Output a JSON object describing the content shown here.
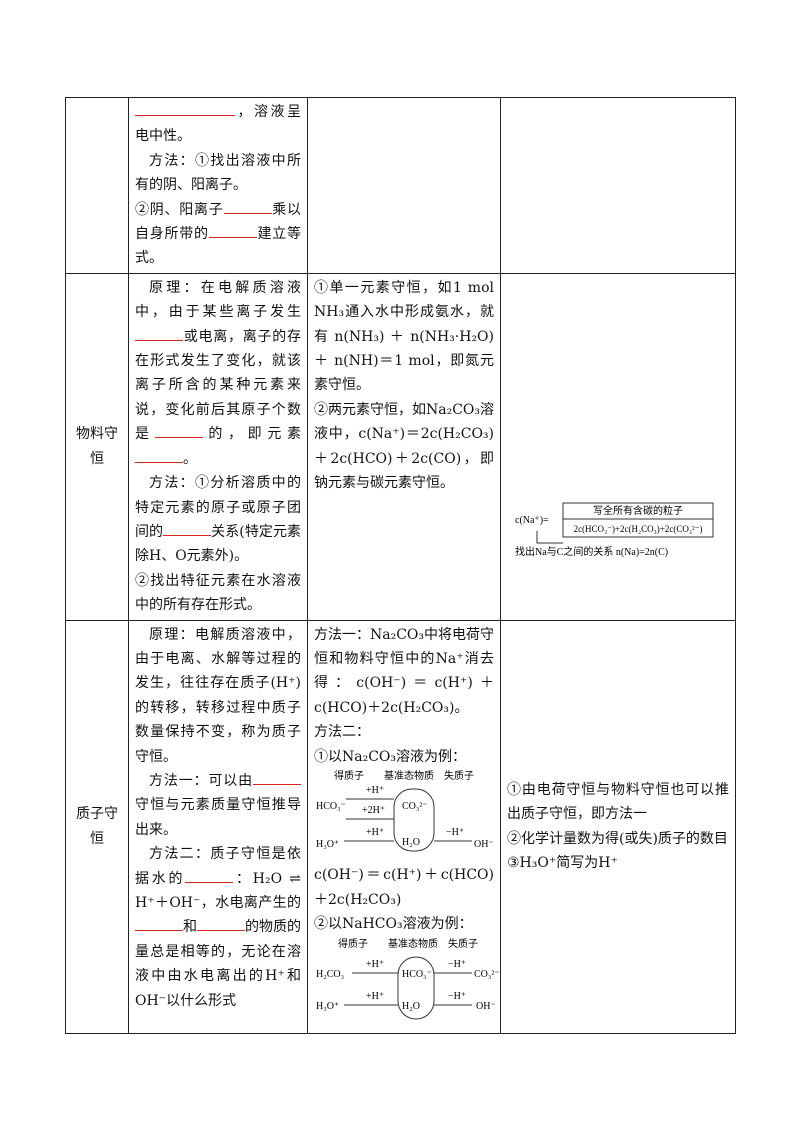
{
  "rows": [
    {
      "col2": [
        [
          "，溶液呈电中性。"
        ],
        [
          "方法：①找出溶液中所有的阴、阳离子。"
        ],
        [
          "②阴、阳离子",
          "乘以自身所带的",
          "建立等式。"
        ]
      ]
    },
    {
      "label": "物料守恒",
      "col2": [
        [
          "原理：在电解质溶液中，由于某些离子发生",
          "或电离，离子的存在形式发生了变化，就该离子所含的某种元素来说，变化前后其原子个数是",
          "的，即元素",
          "。"
        ],
        [
          "方法：①分析溶质中的特定元素的原子或原子团间的",
          "关系(特定元素除H、O元素外)。"
        ],
        [
          "②找出特征元素在水溶液中的所有存在形式。"
        ]
      ],
      "col3": [
        "①单一元素守恒，如1 mol NH₃通入水中形成氨水，就有 n(NH₃) ＋ n(NH₃·H₂O) ＋ n(NH)＝1 mol，即氮元素守恒。",
        "②两元素守恒，如Na₂CO₃溶液中，c(Na⁺)＝2c(H₂CO₃)＋2c(HCO)＋2c(CO)，即钠元素与碳元素守恒。"
      ],
      "diagram": {
        "left": "c(Na⁺)=",
        "top": "写全所有含碳的粒子",
        "formula": "2c(HCO₃⁻)+2c(H₂CO₃)+2c(CO₃²⁻)",
        "bottom": "找出Na与C之间的关系 n(Na)=2n(C)"
      }
    },
    {
      "label": "质子守恒",
      "col2": [
        [
          "原理：电解质溶液中，由于电离、水解等过程的发生，往往存在质子(H⁺)的转移，转移过程中质子数量保持不变，称为质子守恒。"
        ],
        [
          "方法一：可以由",
          "守恒与元素质量守恒推导出来。"
        ],
        [
          "方法二：质子守恒是依据水的",
          "：H₂O ⇌ H⁺＋OH⁻，水电离产生的",
          "和",
          "的物质的量总是相等的，无论在溶液中由水电离出的H⁺和OH⁻以什么形式"
        ]
      ],
      "col3": [
        "方法一：Na₂CO₃中将电荷守恒和物料守恒中的Na⁺消去得：c(OH⁻)＝c(H⁺)＋c(HCO)＋2c(H₂CO₃)。",
        "方法二：",
        "①以Na₂CO₃溶液为例：",
        "c(OH⁻)＝c(H⁺)＋c(HCO)＋2c(H₂CO₃)",
        "②以NaHCO₃溶液为例："
      ],
      "d1": {
        "gain": "得质子",
        "base": "基准态物质",
        "lose": "失质子",
        "a": "HCO₃⁻",
        "h1": "+H⁺",
        "h2": "+2H⁺",
        "c": "CO₃²⁻",
        "h3": "+H⁺",
        "b": "H₃O⁺",
        "w": "H₂O",
        "h4": "−H⁺",
        "o": "OH⁻"
      },
      "d2": {
        "gain": "得质子",
        "base": "基准态物质",
        "lose": "失质子",
        "a": "H₂CO₃",
        "h1": "+H⁺",
        "c": "HCO₃⁻",
        "h2": "−H⁺",
        "e": "CO₃²⁻",
        "b": "H₃O⁺",
        "h3": "+H⁺",
        "w": "H₂O",
        "h4": "−H⁺",
        "o": "OH⁻"
      },
      "col4": [
        "①由电荷守恒与物料守恒也可以推出质子守恒，即方法一",
        "②化学计量数为得(或失)质子的数目",
        "③H₃O⁺简写为H⁺"
      ]
    }
  ]
}
